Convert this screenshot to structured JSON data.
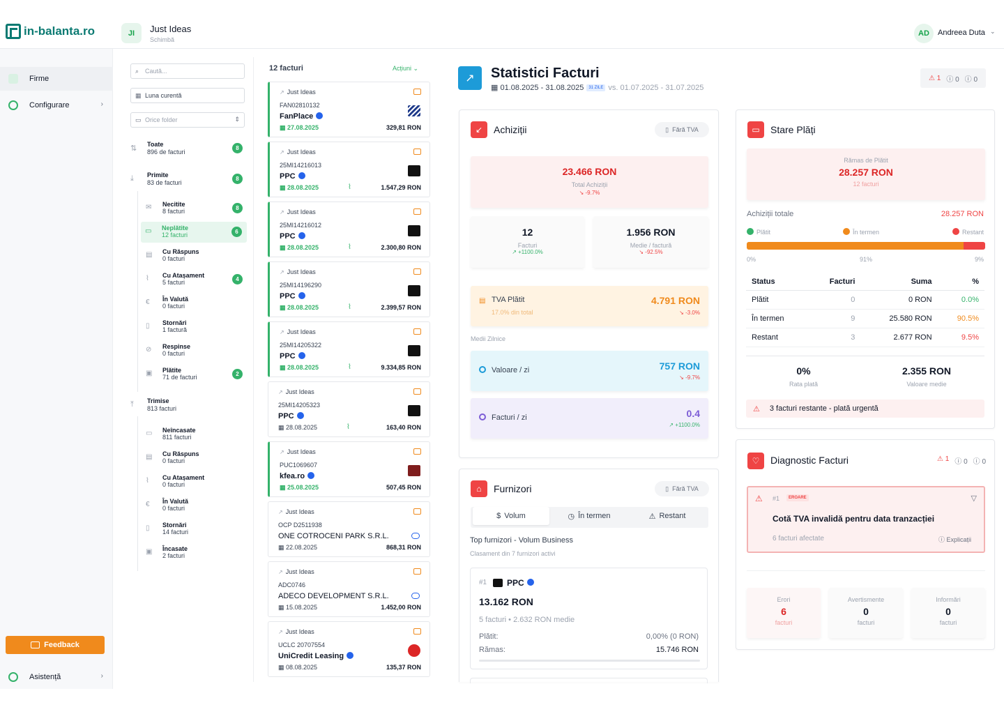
{
  "header": {
    "logo": "in-balanta.ro",
    "company_initials": "JI",
    "company_name": "Just Ideas",
    "company_change": "Schimbă",
    "user_initials": "AD",
    "user_name": "Andreea Duta"
  },
  "sidebar": {
    "items": [
      {
        "label": "Firme",
        "icon": "building-icon"
      },
      {
        "label": "Configurare",
        "icon": "gear-icon"
      }
    ],
    "feedback": "Feedback",
    "help": "Asistență"
  },
  "filters": {
    "search_placeholder": "Caută...",
    "period": "Luna curentă",
    "folder": "Orice folder",
    "groups": [
      {
        "title": "Toate",
        "sub": "896 de facturi",
        "badge": "8"
      },
      {
        "title": "Primite",
        "sub": "83 de facturi",
        "badge": "8"
      }
    ],
    "received": [
      {
        "title": "Necitite",
        "sub": "8 facturi",
        "badge": "8"
      },
      {
        "title": "Neplătite",
        "sub": "12 facturi",
        "badge": "6"
      },
      {
        "title": "Cu Răspuns",
        "sub": "0 facturi",
        "badge": ""
      },
      {
        "title": "Cu Atașament",
        "sub": "5 facturi",
        "badge": "4"
      },
      {
        "title": "În Valută",
        "sub": "0 facturi",
        "badge": ""
      },
      {
        "title": "Stornări",
        "sub": "1 factură",
        "badge": ""
      },
      {
        "title": "Respinse",
        "sub": "0 facturi",
        "badge": ""
      },
      {
        "title": "Plătite",
        "sub": "71 de facturi",
        "badge": "2"
      }
    ],
    "sent_group": {
      "title": "Trimise",
      "sub": "813 facturi"
    },
    "sent": [
      {
        "title": "Neîncasate",
        "sub": "811 facturi"
      },
      {
        "title": "Cu Răspuns",
        "sub": "0 facturi"
      },
      {
        "title": "Cu Atașament",
        "sub": "0 facturi"
      },
      {
        "title": "În Valută",
        "sub": "0 facturi"
      },
      {
        "title": "Stornări",
        "sub": "14 facturi"
      },
      {
        "title": "Încasate",
        "sub": "2 facturi"
      }
    ]
  },
  "invoices": {
    "count_label": "12 facturi",
    "actions": "Acțiuni",
    "items": [
      {
        "company": "Just Ideas",
        "number": "FAN02810132",
        "supplier": "FanPlace",
        "date": "27.08.2025",
        "amount": "329,81 RON"
      },
      {
        "company": "Just Ideas",
        "number": "25MI14216013",
        "supplier": "PPC",
        "date": "28.08.2025",
        "amount": "1.547,29 RON"
      },
      {
        "company": "Just Ideas",
        "number": "25MI14216012",
        "supplier": "PPC",
        "date": "28.08.2025",
        "amount": "2.300,80 RON"
      },
      {
        "company": "Just Ideas",
        "number": "25MI14196290",
        "supplier": "PPC",
        "date": "28.08.2025",
        "amount": "2.399,57 RON"
      },
      {
        "company": "Just Ideas",
        "number": "25MI14205322",
        "supplier": "PPC",
        "date": "28.08.2025",
        "amount": "9.334,85 RON"
      },
      {
        "company": "Just Ideas",
        "number": "25MI14205323",
        "supplier": "PPC",
        "date": "28.08.2025",
        "amount": "163,40 RON"
      },
      {
        "company": "Just Ideas",
        "number": "PUC1069607",
        "supplier": "kfea.ro",
        "date": "25.08.2025",
        "amount": "507,45 RON"
      },
      {
        "company": "Just Ideas",
        "number": "OCP D2511938",
        "supplier": "ONE COTROCENI PARK S.R.L.",
        "date": "22.08.2025",
        "amount": "868,31 RON"
      },
      {
        "company": "Just Ideas",
        "number": "ADC0746",
        "supplier": "ADECO DEVELOPMENT S.R.L.",
        "date": "15.08.2025",
        "amount": "1.452,00 RON"
      },
      {
        "company": "Just Ideas",
        "number": "UCLC 20707554",
        "supplier": "UniCredit Leasing",
        "date": "08.08.2025",
        "amount": "135,37 RON"
      }
    ]
  },
  "stats": {
    "title": "Statistici Facturi",
    "range": "01.08.2025 - 31.08.2025",
    "days": "31 ZILE",
    "compare": "vs. 01.07.2025 - 31.07.2025",
    "alerts": {
      "errors": "1",
      "warnings": "0",
      "infos": "0"
    }
  },
  "achizitii": {
    "title": "Achiziții",
    "vat_toggle": "Fără TVA",
    "total": "23.466 RON",
    "total_label": "Total Achiziții",
    "total_delta": "-9.7%",
    "count": "12",
    "count_label": "Facturi",
    "count_delta": "+1100.0%",
    "avg": "1.956 RON",
    "avg_label": "Medie / factură",
    "avg_delta": "-92.5%",
    "vat_label": "TVA Plătit",
    "vat_sub": "17.0% din total",
    "vat_value": "4.791 RON",
    "vat_delta": "-3.0%",
    "daily_heading": "Medii Zilnice",
    "daily_value_label": "Valoare / zi",
    "daily_value": "757 RON",
    "daily_value_delta": "-9.7%",
    "daily_count_label": "Facturi / zi",
    "daily_count": "0.4",
    "daily_count_delta": "+1100.0%"
  },
  "stare_plati": {
    "title": "Stare Plăți",
    "remaining_label": "Rămas de Plătit",
    "remaining": "28.257 RON",
    "remaining_sub": "12 facturi",
    "total_label": "Achiziții totale",
    "total_value": "28.257 RON",
    "legend": [
      "Plătit",
      "În termen",
      "Restant"
    ],
    "shares": {
      "paid": 0,
      "on_time": 91,
      "overdue": 9
    },
    "share_labels": [
      "0%",
      "91%",
      "9%"
    ],
    "table_headers": [
      "Status",
      "Facturi",
      "Suma",
      "%"
    ],
    "rows": [
      {
        "status": "Plătit",
        "count": "0",
        "sum": "0 RON",
        "pct": "0.0%"
      },
      {
        "status": "În termen",
        "count": "9",
        "sum": "25.580 RON",
        "pct": "90.5%"
      },
      {
        "status": "Restant",
        "count": "3",
        "sum": "2.677 RON",
        "pct": "9.5%"
      }
    ],
    "rate": "0%",
    "rate_label": "Rata plată",
    "avg_value": "2.355 RON",
    "avg_label": "Valoare medie",
    "warning": "3 facturi restante - plată urgentă",
    "colors": {
      "paid": "#34b26a",
      "on_time": "#f08a1c",
      "overdue": "#ef4444"
    }
  },
  "furnizori": {
    "title": "Furnizori",
    "vat_toggle": "Fără TVA",
    "tabs": [
      "Volum",
      "În termen",
      "Restant"
    ],
    "subtitle": "Top furnizori - Volum Business",
    "caption": "Clasament din 7 furnizori activi",
    "top": {
      "rank": "#1",
      "name": "PPC",
      "amount": "13.162 RON",
      "detail": "5 facturi • 2.632 RON medie",
      "paid_label": "Plătit:",
      "paid_value": "0,00% (0 RON)",
      "remaining_label": "Rămas:",
      "remaining_value": "15.746 RON"
    }
  },
  "diagnostic": {
    "title": "Diagnostic Facturi",
    "alerts": {
      "errors": "1",
      "warnings": "0",
      "infos": "0"
    },
    "issue_rank": "#1",
    "issue_tag": "EROARE",
    "issue_title": "Cotă TVA invalidă pentru data tranzacției",
    "issue_count": "6 facturi afectate",
    "issue_link": "Explicații",
    "summary": [
      {
        "label": "Erori",
        "value": "6",
        "unit": "facturi"
      },
      {
        "label": "Avertismente",
        "value": "0",
        "unit": "facturi"
      },
      {
        "label": "Informări",
        "value": "0",
        "unit": "facturi"
      }
    ]
  }
}
